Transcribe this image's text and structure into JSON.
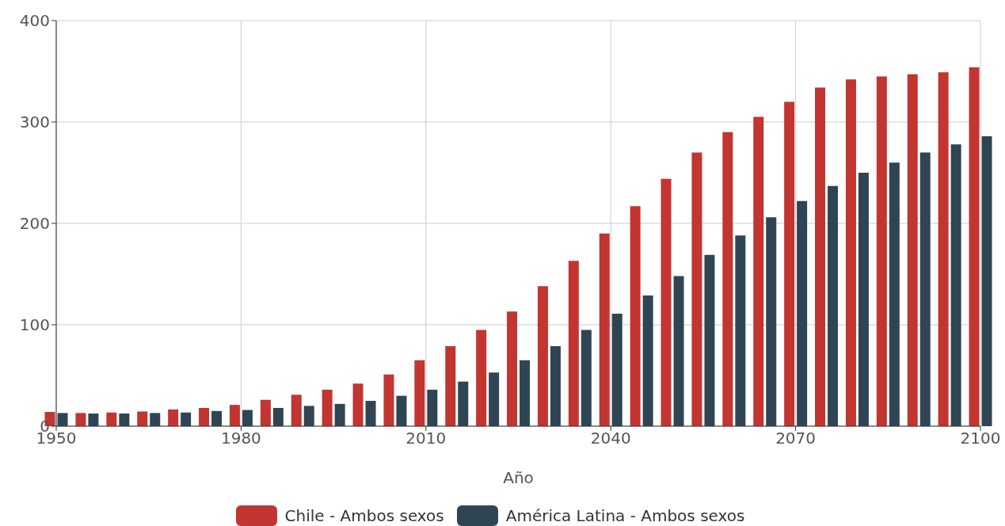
{
  "chart_data": {
    "type": "bar",
    "xlabel": "Año",
    "x": [
      1950,
      1955,
      1960,
      1965,
      1970,
      1975,
      1980,
      1985,
      1990,
      1995,
      2000,
      2005,
      2010,
      2015,
      2020,
      2025,
      2030,
      2035,
      2040,
      2045,
      2050,
      2055,
      2060,
      2065,
      2070,
      2075,
      2080,
      2085,
      2090,
      2095,
      2100
    ],
    "series": [
      {
        "name": "Chile - Ambos sexos",
        "color": "#c23531",
        "values": [
          14,
          13,
          13.5,
          14.5,
          16.5,
          18,
          21,
          26,
          31,
          36,
          42,
          51,
          65,
          79,
          95,
          113,
          138,
          163,
          190,
          217,
          244,
          270,
          290,
          305,
          320,
          334,
          342,
          345,
          347,
          349,
          354
        ]
      },
      {
        "name": "América Latina - Ambos sexos",
        "color": "#2f4554",
        "values": [
          13,
          12.5,
          12.5,
          13,
          13.5,
          15,
          16,
          18,
          20,
          22,
          25,
          30,
          36,
          44,
          53,
          65,
          79,
          95,
          111,
          129,
          148,
          169,
          188,
          206,
          222,
          237,
          250,
          260,
          270,
          278,
          286
        ]
      }
    ],
    "xlim": [
      1950,
      2100
    ],
    "xticks": [
      1950,
      1980,
      2010,
      2040,
      2070,
      2100
    ],
    "ylim": [
      0,
      400
    ],
    "yticks": [
      0,
      100,
      200,
      300,
      400
    ],
    "grid": true,
    "legend": "bottom"
  }
}
